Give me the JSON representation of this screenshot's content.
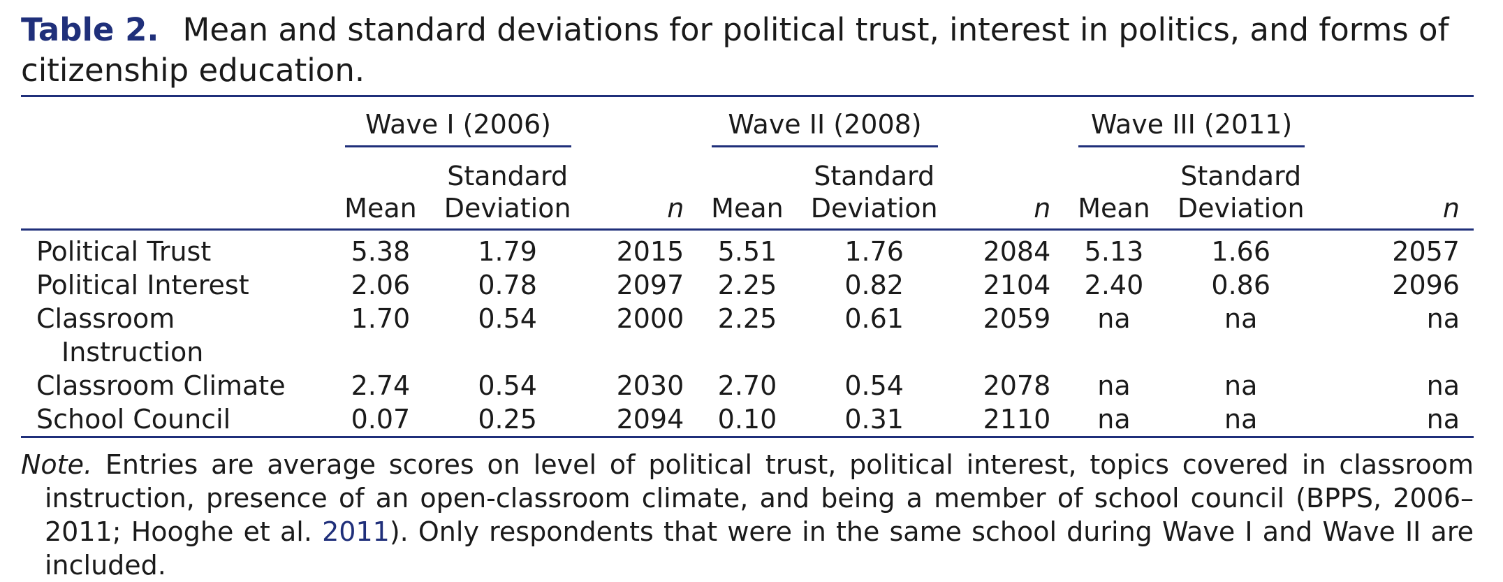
{
  "caption": {
    "label": "Table 2.",
    "text": "Mean and standard deviations for political trust, interest in politics, and forms of citizenship education."
  },
  "waves": [
    {
      "label": "Wave I (2006)"
    },
    {
      "label": "Wave II (2008)"
    },
    {
      "label": "Wave III (2011)"
    }
  ],
  "columns": {
    "mean": "Mean",
    "sd_line1": "Standard",
    "sd_line2": "Deviation",
    "n": "n"
  },
  "rows": [
    {
      "label": "Political Trust",
      "label2": "",
      "values": [
        "5.38",
        "1.79",
        "2015",
        "5.51",
        "1.76",
        "2084",
        "5.13",
        "1.66",
        "2057"
      ]
    },
    {
      "label": "Political Interest",
      "label2": "",
      "values": [
        "2.06",
        "0.78",
        "2097",
        "2.25",
        "0.82",
        "2104",
        "2.40",
        "0.86",
        "2096"
      ]
    },
    {
      "label": "Classroom",
      "label2": "Instruction",
      "values": [
        "1.70",
        "0.54",
        "2000",
        "2.25",
        "0.61",
        "2059",
        "na",
        "na",
        "na"
      ]
    },
    {
      "label": "Classroom Climate",
      "label2": "",
      "values": [
        "2.74",
        "0.54",
        "2030",
        "2.70",
        "0.54",
        "2078",
        "na",
        "na",
        "na"
      ]
    },
    {
      "label": "School Council",
      "label2": "",
      "values": [
        "0.07",
        "0.25",
        "2094",
        "0.10",
        "0.31",
        "2110",
        "na",
        "na",
        "na"
      ]
    }
  ],
  "note": {
    "lead": "Note.",
    "text_before_link": " Entries are average scores on level of political trust, political interest, topics covered in classroom instruction, presence of an open-classroom climate, and being a member of school council (BPPS, 2006–2011; Hooghe et al. ",
    "link": "2011",
    "text_after_link": "). Only respondents that were in the same school during Wave I and Wave II are included."
  },
  "colors": {
    "accent": "#1f2f7a",
    "text": "#1a1a1a"
  }
}
